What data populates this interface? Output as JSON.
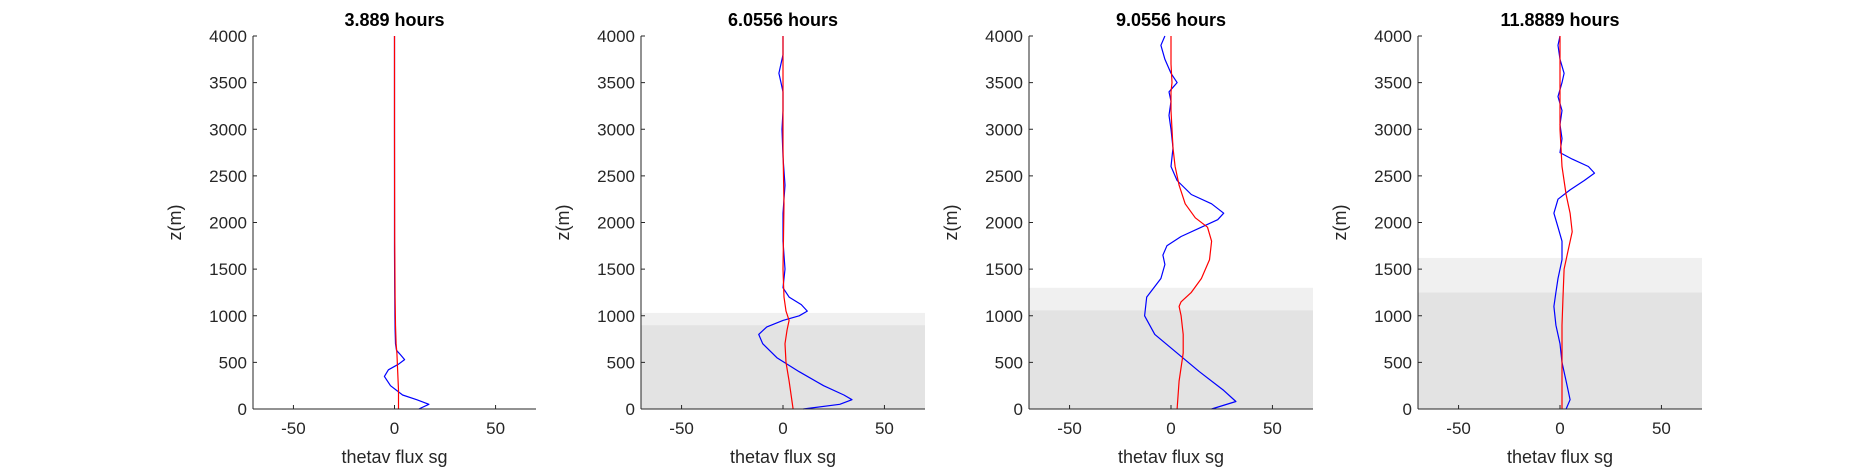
{
  "chart_data": [
    {
      "type": "line",
      "title": "3.889 hours",
      "xlabel": "thetav flux sg",
      "ylabel": "z(m)",
      "xlim": [
        -70,
        70
      ],
      "ylim": [
        0,
        4000
      ],
      "xticks": [
        -50,
        0,
        50
      ],
      "yticks": [
        0,
        500,
        1000,
        1500,
        2000,
        2500,
        3000,
        3500,
        4000
      ],
      "shading": [],
      "series": [
        {
          "color": "#0000ff",
          "x": [
            12,
            17,
            11,
            4,
            -2,
            -5,
            -3,
            2,
            5,
            3,
            1,
            0.5,
            0.3,
            0.2,
            0.1,
            0,
            0,
            0,
            0,
            0
          ],
          "y": [
            0,
            50,
            100,
            150,
            250,
            350,
            420,
            480,
            530,
            580,
            630,
            700,
            850,
            1000,
            1300,
            1700,
            2200,
            3000,
            3600,
            4000
          ]
        },
        {
          "color": "#ff0000",
          "x": [
            2,
            2,
            1.6,
            1.2,
            0.8,
            0.5,
            0.3,
            0.1,
            0,
            0
          ],
          "y": [
            0,
            200,
            400,
            600,
            700,
            900,
            1200,
            1800,
            3000,
            4000
          ]
        }
      ]
    },
    {
      "type": "line",
      "title": "6.0556 hours",
      "xlabel": "thetav flux sg",
      "ylabel": "z(m)",
      "xlim": [
        -70,
        70
      ],
      "ylim": [
        0,
        4000
      ],
      "xticks": [
        -50,
        0,
        50
      ],
      "yticks": [
        0,
        500,
        1000,
        1500,
        2000,
        2500,
        3000,
        3500,
        4000
      ],
      "shading": [
        {
          "y0": 0,
          "y1": 900,
          "color": "#e3e3e3"
        },
        {
          "y0": 900,
          "y1": 1030,
          "color": "#f0f0f0"
        }
      ],
      "series": [
        {
          "color": "#0000ff",
          "x": [
            10,
            28,
            34,
            30,
            20,
            8,
            -3,
            -10,
            -12,
            -8,
            0,
            8,
            12,
            9,
            3,
            0,
            1,
            0,
            0,
            1,
            0,
            -0.5,
            0,
            0,
            -1,
            -2,
            0,
            0
          ],
          "y": [
            0,
            50,
            100,
            150,
            250,
            400,
            550,
            700,
            800,
            880,
            950,
            1000,
            1050,
            1120,
            1200,
            1300,
            1500,
            1800,
            2100,
            2400,
            2700,
            3000,
            3200,
            3400,
            3500,
            3600,
            3800,
            4000
          ]
        },
        {
          "color": "#ff0000",
          "x": [
            5,
            4,
            3,
            1.5,
            1,
            2,
            3,
            1.5,
            0.5,
            0,
            0.5,
            0,
            0,
            0
          ],
          "y": [
            0,
            150,
            300,
            500,
            700,
            850,
            950,
            1050,
            1200,
            1500,
            2200,
            2800,
            3500,
            4000
          ]
        }
      ]
    },
    {
      "type": "line",
      "title": "9.0556 hours",
      "xlabel": "thetav flux sg",
      "ylabel": "z(m)",
      "xlim": [
        -70,
        70
      ],
      "ylim": [
        0,
        4000
      ],
      "xticks": [
        -50,
        0,
        50
      ],
      "yticks": [
        0,
        500,
        1000,
        1500,
        2000,
        2500,
        3000,
        3500,
        4000
      ],
      "shading": [
        {
          "y0": 0,
          "y1": 1060,
          "color": "#e3e3e3"
        },
        {
          "y0": 1060,
          "y1": 1300,
          "color": "#f0f0f0"
        }
      ],
      "series": [
        {
          "color": "#0000ff",
          "x": [
            20,
            32,
            26,
            14,
            3,
            -8,
            -13,
            -12,
            -5,
            -3,
            -4,
            -2,
            5,
            15,
            23,
            26,
            20,
            10,
            3,
            0,
            1,
            0,
            -1,
            0,
            -1,
            1,
            3,
            0,
            -3,
            -5,
            -3
          ],
          "y": [
            0,
            80,
            200,
            400,
            600,
            800,
            1000,
            1200,
            1400,
            1550,
            1650,
            1750,
            1850,
            1950,
            2030,
            2100,
            2200,
            2300,
            2450,
            2600,
            2800,
            3000,
            3150,
            3300,
            3400,
            3450,
            3500,
            3600,
            3750,
            3900,
            4000
          ]
        },
        {
          "color": "#ff0000",
          "x": [
            3,
            4,
            6,
            6,
            5,
            4,
            5,
            10,
            15,
            19,
            20,
            18,
            12,
            7,
            4,
            2,
            1,
            0.5,
            0,
            0,
            0.5,
            0,
            0,
            0
          ],
          "y": [
            0,
            300,
            600,
            800,
            1000,
            1100,
            1150,
            1250,
            1400,
            1600,
            1800,
            1950,
            2050,
            2200,
            2400,
            2600,
            2800,
            3000,
            3200,
            3400,
            3500,
            3700,
            3900,
            4000
          ]
        }
      ]
    },
    {
      "type": "line",
      "title": "11.8889 hours",
      "xlabel": "thetav flux sg",
      "ylabel": "z(m)",
      "xlim": [
        -70,
        70
      ],
      "ylim": [
        0,
        4000
      ],
      "xticks": [
        -50,
        0,
        50
      ],
      "yticks": [
        0,
        500,
        1000,
        1500,
        2000,
        2500,
        3000,
        3500,
        4000
      ],
      "shading": [
        {
          "y0": 0,
          "y1": 1250,
          "color": "#e3e3e3"
        },
        {
          "y0": 1250,
          "y1": 1620,
          "color": "#f0f0f0"
        }
      ],
      "series": [
        {
          "color": "#0000ff",
          "x": [
            3,
            5,
            3,
            1,
            0,
            -2,
            -3,
            -2,
            -1,
            1,
            1,
            -1,
            -3,
            -1,
            5,
            12,
            17,
            14,
            6,
            0,
            1,
            0,
            1,
            -1,
            1,
            2,
            0,
            -1,
            0
          ],
          "y": [
            0,
            100,
            300,
            500,
            700,
            900,
            1100,
            1250,
            1400,
            1600,
            1800,
            1950,
            2100,
            2250,
            2350,
            2450,
            2530,
            2600,
            2680,
            2750,
            2900,
            3050,
            3200,
            3350,
            3500,
            3600,
            3750,
            3900,
            4000
          ]
        },
        {
          "color": "#ff0000",
          "x": [
            1,
            1,
            1,
            1.5,
            2,
            4,
            6,
            5,
            3,
            1,
            0,
            0,
            0
          ],
          "y": [
            0,
            400,
            900,
            1200,
            1500,
            1700,
            1900,
            2100,
            2300,
            2600,
            3000,
            3500,
            4000
          ]
        }
      ]
    }
  ]
}
